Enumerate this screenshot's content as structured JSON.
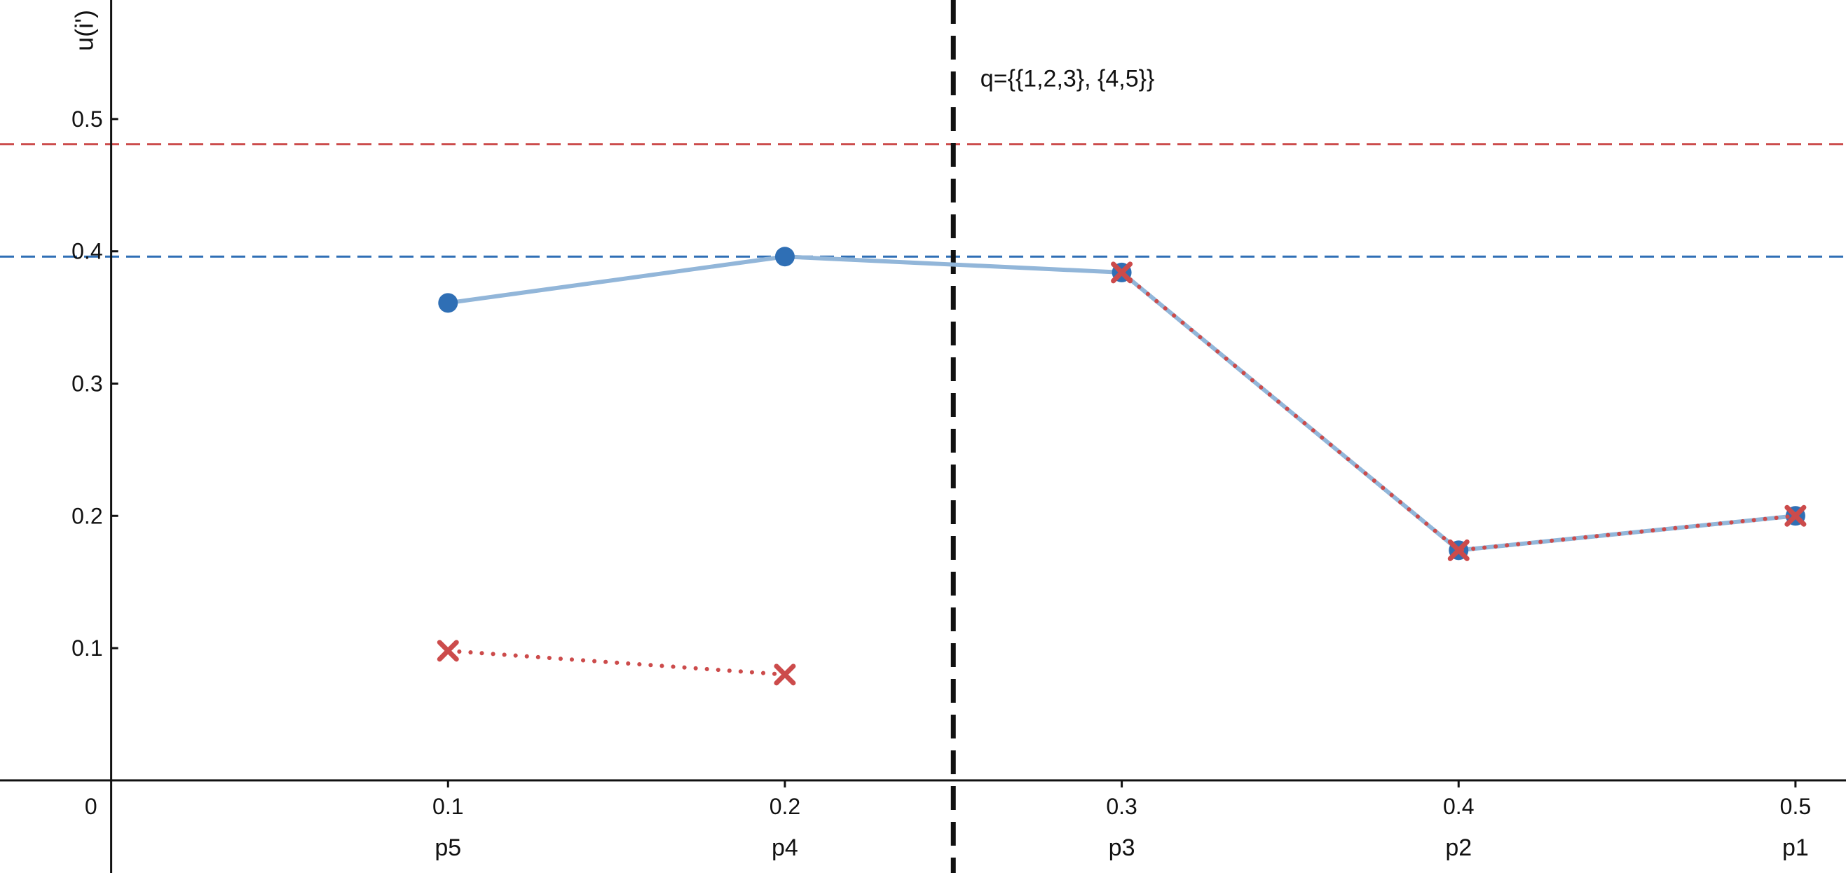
{
  "chart_data": {
    "type": "line",
    "title": "",
    "xlabel": "",
    "ylabel": "u(i')",
    "xlim": [
      -0.033,
      0.515
    ],
    "ylim": [
      -0.07,
      0.59
    ],
    "x_ticks": [
      0,
      0.1,
      0.2,
      0.3,
      0.4,
      0.5
    ],
    "x_tick_labels": [
      "0",
      "0.1",
      "0.2",
      "0.3",
      "0.4",
      "0.5"
    ],
    "y_ticks": [
      0.1,
      0.2,
      0.3,
      0.4,
      0.5
    ],
    "y_tick_labels": [
      "0.1",
      "0.2",
      "0.3",
      "0.4",
      "0.5"
    ],
    "categories": [
      "p5",
      "p4",
      "p3",
      "p2",
      "p1"
    ],
    "x": [
      0.1,
      0.2,
      0.3,
      0.4,
      0.5
    ],
    "series": [
      {
        "marker": "circle",
        "color": "#2f6fb5",
        "line_color": "#92b6d9",
        "line_style": "solid",
        "segments": [
          [
            0,
            1,
            2,
            3,
            4
          ]
        ],
        "values": [
          0.361,
          0.396,
          0.384,
          0.174,
          0.2
        ]
      },
      {
        "marker": "x",
        "color": "#cc4b4b",
        "line_style": "dotted",
        "segments": [
          [
            0,
            1
          ],
          [
            2,
            3,
            4
          ]
        ],
        "values": [
          0.098,
          0.08,
          0.384,
          0.174,
          0.2
        ]
      }
    ],
    "reference_lines": [
      {
        "orientation": "horizontal",
        "value": 0.481,
        "color": "#cc4b4b",
        "style": "dashed"
      },
      {
        "orientation": "horizontal",
        "value": 0.396,
        "color": "#2f6fb5",
        "style": "dashed"
      },
      {
        "orientation": "vertical",
        "value": 0.25,
        "color": "#111111",
        "style": "dashed"
      }
    ],
    "annotations": [
      {
        "text": "q={{1,2,3}, {4,5}}",
        "x": 0.258,
        "y": 0.53
      }
    ],
    "grid": false,
    "legend": "none"
  }
}
